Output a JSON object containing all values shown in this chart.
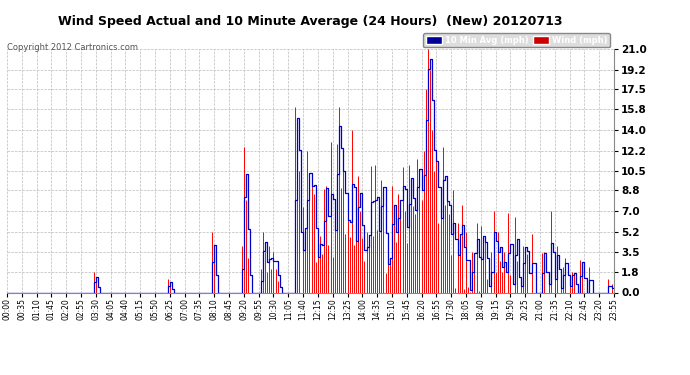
{
  "title": "Wind Speed Actual and 10 Minute Average (24 Hours)  (New) 20120713",
  "copyright": "Copyright 2012 Cartronics.com",
  "legend_avg": "10 Min Avg (mph)",
  "legend_wind": "Wind (mph)",
  "yticks": [
    0.0,
    1.8,
    3.5,
    5.2,
    7.0,
    8.8,
    10.5,
    12.2,
    14.0,
    15.8,
    17.5,
    19.2,
    21.0
  ],
  "ymax": 21.0,
  "ymin": 0.0,
  "bg_color": "#ffffff",
  "plot_bg_color": "#ffffff",
  "grid_color": "#bbbbbb",
  "wind_color": "#ff0000",
  "avg_color": "#0000cc",
  "title_color": "#000000",
  "legend_avg_bg": "#000099",
  "legend_wind_bg": "#cc0000",
  "n_points": 288
}
